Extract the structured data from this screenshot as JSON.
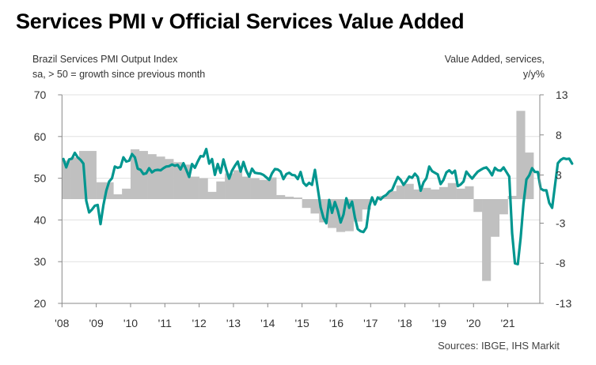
{
  "title": "Services PMI v Official Services Value Added",
  "left_axis_label": [
    "Brazil Services PMI Output Index",
    "sa, > 50 = growth since previous month"
  ],
  "right_axis_label": [
    "Value Added, services,",
    "y/y%"
  ],
  "source": "Sources: IBGE, IHS Markit",
  "colors": {
    "line": "#00968f",
    "bars": "#c0c0c0",
    "grid": "#e0e0e0",
    "axis": "#888888"
  },
  "chart_data": {
    "type": "bar+line",
    "title": "Services PMI v Official Services Value Added",
    "x_tick_labels": [
      "'08",
      "'09",
      "'10",
      "'11",
      "'12",
      "'13",
      "'14",
      "'15",
      "'16",
      "'17",
      "'18",
      "'19",
      "'20",
      "'21"
    ],
    "left_axis": {
      "label": "Brazil Services PMI Output Index, sa, > 50 = growth since previous month",
      "ylim": [
        20,
        70
      ],
      "ticks": [
        20,
        30,
        40,
        50,
        60,
        70
      ]
    },
    "right_axis": {
      "label": "Value Added, services, y/y%",
      "ylim": [
        -13,
        13
      ],
      "ticks": [
        -13,
        -8,
        -3,
        3,
        8,
        13
      ]
    },
    "grid": true,
    "series": [
      {
        "name": "Value Added, services, y/y% (quarterly, right axis)",
        "type": "bar",
        "axis": "right",
        "start": "2008Q1",
        "values": [
          4.8,
          5.2,
          6.0,
          6.0,
          2.1,
          2.1,
          0.6,
          1.3,
          6.2,
          6.0,
          5.6,
          5.3,
          5.0,
          4.6,
          4.3,
          2.8,
          2.6,
          0.9,
          2.2,
          3.2,
          3.6,
          2.8,
          2.6,
          2.4,
          2.7,
          0.5,
          0.3,
          0.2,
          -1.1,
          -1.8,
          -2.9,
          -3.6,
          -4.1,
          -4.0,
          -2.8,
          -1.3,
          0.0,
          0.4,
          1.0,
          1.7,
          1.9,
          1.2,
          1.4,
          1.2,
          1.5,
          2.0,
          1.3,
          1.6,
          -1.6,
          -10.2,
          -4.7,
          -1.9,
          0.4,
          11.0,
          5.8
        ]
      },
      {
        "name": "Brazil Services PMI Output Index (monthly, left axis)",
        "type": "line",
        "axis": "left",
        "start": "2008-01",
        "values": [
          54.6,
          52.6,
          54.5,
          54.7,
          56.1,
          55.0,
          54.4,
          53.5,
          44.6,
          41.8,
          42.5,
          43.4,
          43.6,
          39.0,
          43.6,
          47.0,
          49.2,
          50.0,
          52.8,
          52.5,
          52.7,
          55.0,
          54.0,
          54.2,
          55.8,
          55.0,
          52.3,
          52.0,
          51.0,
          51.2,
          52.4,
          51.4,
          51.9,
          52.0,
          51.9,
          52.4,
          52.8,
          52.9,
          53.3,
          53.0,
          53.2,
          52.1,
          53.6,
          52.0,
          50.3,
          53.4,
          52.5,
          54.0,
          55.3,
          55.2,
          57.0,
          53.5,
          54.6,
          50.8,
          53.4,
          51.3,
          54.5,
          52.0,
          49.9,
          51.8,
          53.0,
          54.0,
          51.6,
          53.9,
          51.8,
          50.4,
          52.3,
          51.3,
          51.2,
          51.1,
          50.8,
          50.2,
          49.6,
          51.2,
          52.2,
          52.1,
          51.6,
          49.8,
          51.0,
          51.3,
          50.8,
          50.7,
          49.8,
          51.5,
          48.9,
          48.2,
          48.9,
          48.4,
          52.0,
          47.5,
          43.0,
          40.5,
          39.2,
          44.8,
          41.7,
          44.3,
          42.3,
          39.4,
          41.3,
          45.2,
          42.9,
          44.4,
          40.6,
          37.8,
          37.3,
          37.1,
          38.2,
          43.2,
          45.4,
          43.7,
          45.4,
          44.9,
          45.6,
          46.0,
          46.8,
          47.2,
          48.8,
          50.3,
          49.6,
          48.4,
          49.3,
          50.4,
          50.1,
          51.1,
          50.3,
          47.0,
          49.0,
          50.0,
          52.8,
          51.7,
          51.3,
          50.9,
          48.6,
          49.6,
          51.4,
          51.9,
          51.2,
          51.8,
          48.1,
          48.5,
          49.2,
          51.6,
          50.7,
          49.9,
          50.8,
          51.6,
          52.0,
          52.4,
          52.6,
          51.8,
          50.7,
          52.5,
          51.9,
          51.8,
          52.6,
          51.5,
          50.4,
          36.9,
          29.6,
          29.4,
          35.7,
          43.9,
          49.7,
          50.7,
          52.4,
          51.5,
          51.5,
          47.5,
          47.1,
          47.1,
          44.1,
          42.9,
          48.3,
          53.6,
          54.4,
          54.8,
          54.6,
          54.7,
          53.5
        ]
      }
    ],
    "legend": "none"
  }
}
